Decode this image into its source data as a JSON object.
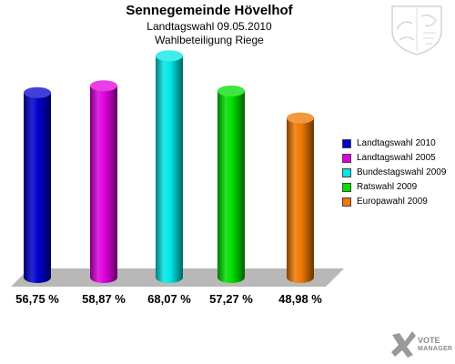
{
  "header": {
    "title": "Sennegemeinde Hövelhof",
    "subtitle": "Landtagswahl 09.05.2010",
    "subtitle2": "Wahlbeteiligung Riege"
  },
  "chart_data": {
    "type": "bar",
    "categories": [
      "Landtagswahl 2010",
      "Landtagswahl 2005",
      "Bundestagswahl 2009",
      "Ratswahl 2009",
      "Europawahl 2009"
    ],
    "values": [
      56.75,
      58.87,
      68.07,
      57.27,
      48.98
    ],
    "value_labels": [
      "56,75 %",
      "58,87 %",
      "68,07 %",
      "57,27 %",
      "48,98 %"
    ],
    "colors": [
      "#0000cc",
      "#dd00dd",
      "#00e5e5",
      "#00dd00",
      "#ee7700"
    ],
    "legend_position": "right",
    "grid": false
  },
  "branding": {
    "line1": "VOTE",
    "line2": "MANAGER"
  }
}
